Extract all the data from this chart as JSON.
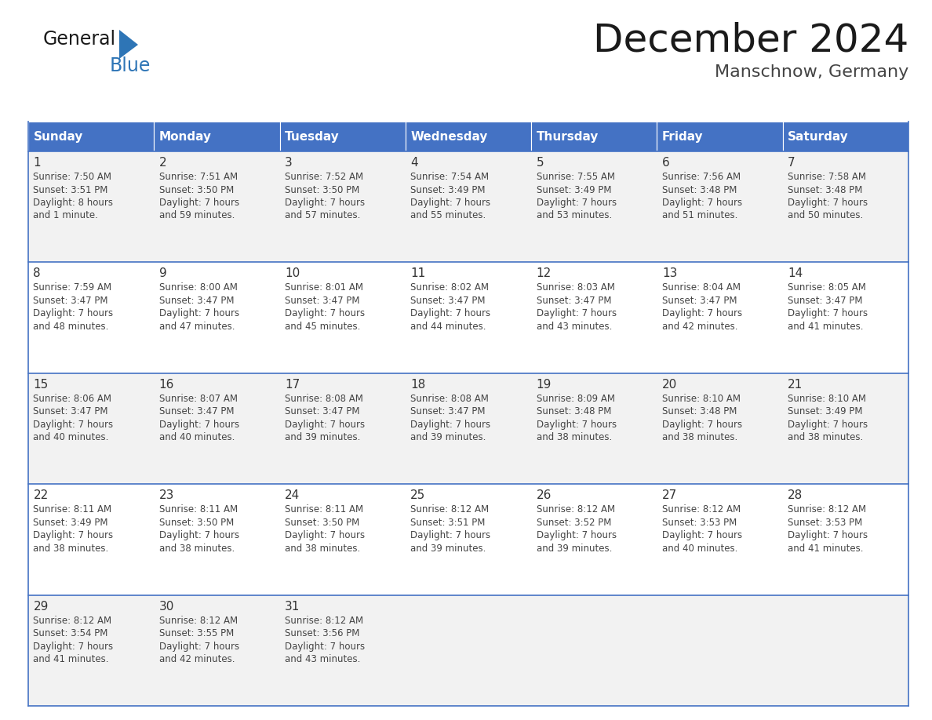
{
  "title": "December 2024",
  "subtitle": "Manschnow, Germany",
  "header_bg": "#4472C4",
  "header_text_color": "#FFFFFF",
  "day_names": [
    "Sunday",
    "Monday",
    "Tuesday",
    "Wednesday",
    "Thursday",
    "Friday",
    "Saturday"
  ],
  "row_bg_odd": "#F2F2F2",
  "row_bg_even": "#FFFFFF",
  "cell_border_color": "#4472C4",
  "day_number_color": "#333333",
  "text_color": "#444444",
  "days": [
    {
      "day": 1,
      "col": 0,
      "row": 0,
      "sunrise": "7:50 AM",
      "sunset": "3:51 PM",
      "daylight": "8 hours",
      "daylight2": "and 1 minute."
    },
    {
      "day": 2,
      "col": 1,
      "row": 0,
      "sunrise": "7:51 AM",
      "sunset": "3:50 PM",
      "daylight": "7 hours",
      "daylight2": "and 59 minutes."
    },
    {
      "day": 3,
      "col": 2,
      "row": 0,
      "sunrise": "7:52 AM",
      "sunset": "3:50 PM",
      "daylight": "7 hours",
      "daylight2": "and 57 minutes."
    },
    {
      "day": 4,
      "col": 3,
      "row": 0,
      "sunrise": "7:54 AM",
      "sunset": "3:49 PM",
      "daylight": "7 hours",
      "daylight2": "and 55 minutes."
    },
    {
      "day": 5,
      "col": 4,
      "row": 0,
      "sunrise": "7:55 AM",
      "sunset": "3:49 PM",
      "daylight": "7 hours",
      "daylight2": "and 53 minutes."
    },
    {
      "day": 6,
      "col": 5,
      "row": 0,
      "sunrise": "7:56 AM",
      "sunset": "3:48 PM",
      "daylight": "7 hours",
      "daylight2": "and 51 minutes."
    },
    {
      "day": 7,
      "col": 6,
      "row": 0,
      "sunrise": "7:58 AM",
      "sunset": "3:48 PM",
      "daylight": "7 hours",
      "daylight2": "and 50 minutes."
    },
    {
      "day": 8,
      "col": 0,
      "row": 1,
      "sunrise": "7:59 AM",
      "sunset": "3:47 PM",
      "daylight": "7 hours",
      "daylight2": "and 48 minutes."
    },
    {
      "day": 9,
      "col": 1,
      "row": 1,
      "sunrise": "8:00 AM",
      "sunset": "3:47 PM",
      "daylight": "7 hours",
      "daylight2": "and 47 minutes."
    },
    {
      "day": 10,
      "col": 2,
      "row": 1,
      "sunrise": "8:01 AM",
      "sunset": "3:47 PM",
      "daylight": "7 hours",
      "daylight2": "and 45 minutes."
    },
    {
      "day": 11,
      "col": 3,
      "row": 1,
      "sunrise": "8:02 AM",
      "sunset": "3:47 PM",
      "daylight": "7 hours",
      "daylight2": "and 44 minutes."
    },
    {
      "day": 12,
      "col": 4,
      "row": 1,
      "sunrise": "8:03 AM",
      "sunset": "3:47 PM",
      "daylight": "7 hours",
      "daylight2": "and 43 minutes."
    },
    {
      "day": 13,
      "col": 5,
      "row": 1,
      "sunrise": "8:04 AM",
      "sunset": "3:47 PM",
      "daylight": "7 hours",
      "daylight2": "and 42 minutes."
    },
    {
      "day": 14,
      "col": 6,
      "row": 1,
      "sunrise": "8:05 AM",
      "sunset": "3:47 PM",
      "daylight": "7 hours",
      "daylight2": "and 41 minutes."
    },
    {
      "day": 15,
      "col": 0,
      "row": 2,
      "sunrise": "8:06 AM",
      "sunset": "3:47 PM",
      "daylight": "7 hours",
      "daylight2": "and 40 minutes."
    },
    {
      "day": 16,
      "col": 1,
      "row": 2,
      "sunrise": "8:07 AM",
      "sunset": "3:47 PM",
      "daylight": "7 hours",
      "daylight2": "and 40 minutes."
    },
    {
      "day": 17,
      "col": 2,
      "row": 2,
      "sunrise": "8:08 AM",
      "sunset": "3:47 PM",
      "daylight": "7 hours",
      "daylight2": "and 39 minutes."
    },
    {
      "day": 18,
      "col": 3,
      "row": 2,
      "sunrise": "8:08 AM",
      "sunset": "3:47 PM",
      "daylight": "7 hours",
      "daylight2": "and 39 minutes."
    },
    {
      "day": 19,
      "col": 4,
      "row": 2,
      "sunrise": "8:09 AM",
      "sunset": "3:48 PM",
      "daylight": "7 hours",
      "daylight2": "and 38 minutes."
    },
    {
      "day": 20,
      "col": 5,
      "row": 2,
      "sunrise": "8:10 AM",
      "sunset": "3:48 PM",
      "daylight": "7 hours",
      "daylight2": "and 38 minutes."
    },
    {
      "day": 21,
      "col": 6,
      "row": 2,
      "sunrise": "8:10 AM",
      "sunset": "3:49 PM",
      "daylight": "7 hours",
      "daylight2": "and 38 minutes."
    },
    {
      "day": 22,
      "col": 0,
      "row": 3,
      "sunrise": "8:11 AM",
      "sunset": "3:49 PM",
      "daylight": "7 hours",
      "daylight2": "and 38 minutes."
    },
    {
      "day": 23,
      "col": 1,
      "row": 3,
      "sunrise": "8:11 AM",
      "sunset": "3:50 PM",
      "daylight": "7 hours",
      "daylight2": "and 38 minutes."
    },
    {
      "day": 24,
      "col": 2,
      "row": 3,
      "sunrise": "8:11 AM",
      "sunset": "3:50 PM",
      "daylight": "7 hours",
      "daylight2": "and 38 minutes."
    },
    {
      "day": 25,
      "col": 3,
      "row": 3,
      "sunrise": "8:12 AM",
      "sunset": "3:51 PM",
      "daylight": "7 hours",
      "daylight2": "and 39 minutes."
    },
    {
      "day": 26,
      "col": 4,
      "row": 3,
      "sunrise": "8:12 AM",
      "sunset": "3:52 PM",
      "daylight": "7 hours",
      "daylight2": "and 39 minutes."
    },
    {
      "day": 27,
      "col": 5,
      "row": 3,
      "sunrise": "8:12 AM",
      "sunset": "3:53 PM",
      "daylight": "7 hours",
      "daylight2": "and 40 minutes."
    },
    {
      "day": 28,
      "col": 6,
      "row": 3,
      "sunrise": "8:12 AM",
      "sunset": "3:53 PM",
      "daylight": "7 hours",
      "daylight2": "and 41 minutes."
    },
    {
      "day": 29,
      "col": 0,
      "row": 4,
      "sunrise": "8:12 AM",
      "sunset": "3:54 PM",
      "daylight": "7 hours",
      "daylight2": "and 41 minutes."
    },
    {
      "day": 30,
      "col": 1,
      "row": 4,
      "sunrise": "8:12 AM",
      "sunset": "3:55 PM",
      "daylight": "7 hours",
      "daylight2": "and 42 minutes."
    },
    {
      "day": 31,
      "col": 2,
      "row": 4,
      "sunrise": "8:12 AM",
      "sunset": "3:56 PM",
      "daylight": "7 hours",
      "daylight2": "and 43 minutes."
    }
  ],
  "logo_general_color": "#1a1a1a",
  "logo_blue_color": "#2E75B6",
  "n_rows": 5
}
